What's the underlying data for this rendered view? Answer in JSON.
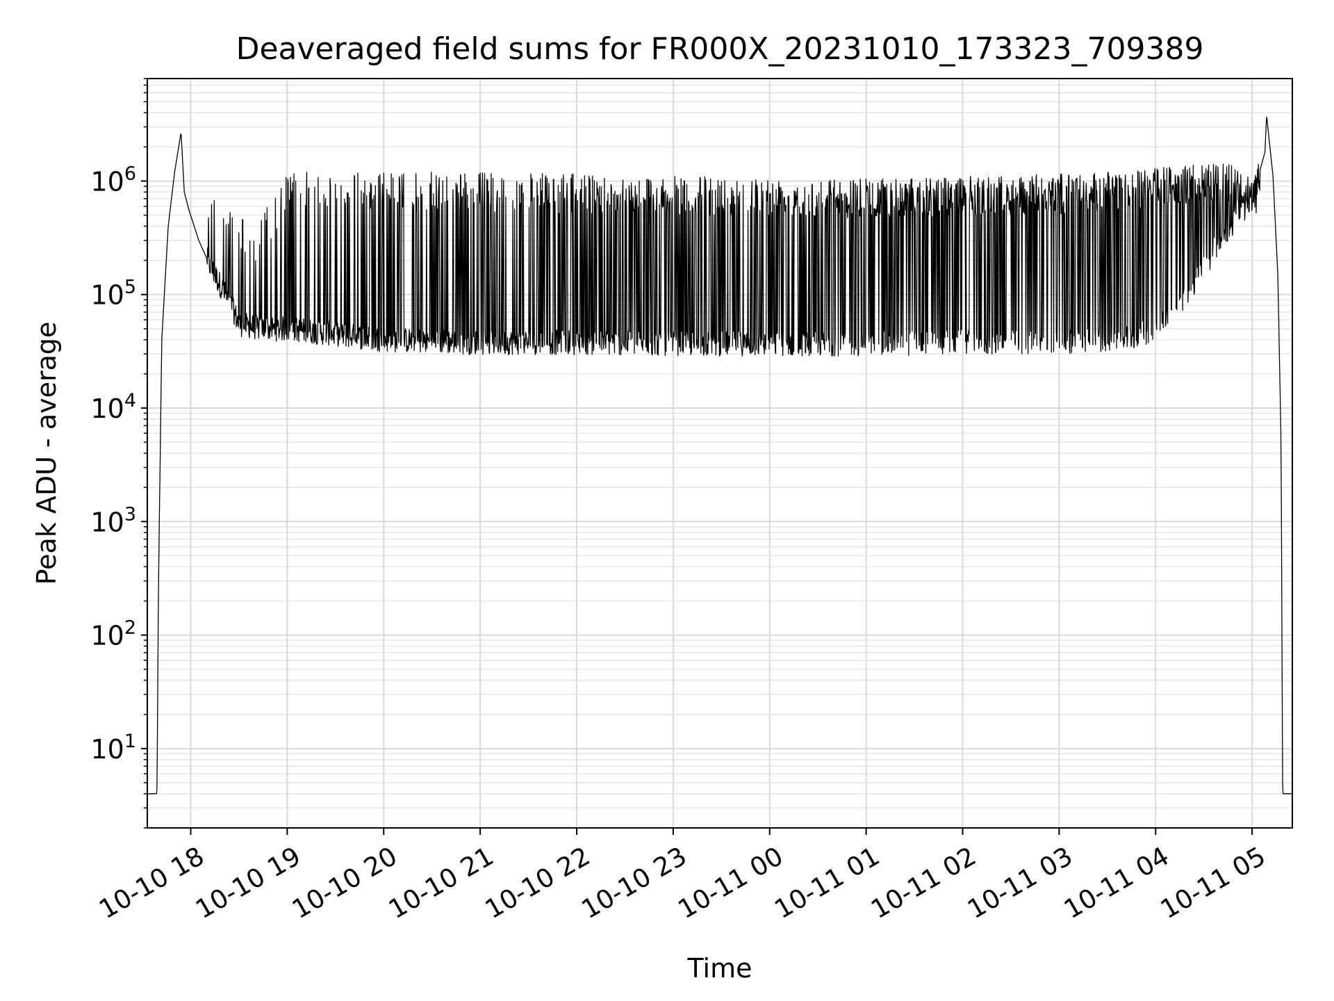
{
  "chart_data": {
    "type": "line",
    "title": "Deaveraged field sums for FR000X_20231010_173323_709389",
    "xlabel": "Time",
    "ylabel": "Peak ADU - average",
    "yscale": "log",
    "grid": true,
    "grid_minor": true,
    "xlim": [
      "2023-10-10 17:33",
      "2023-10-11 05:25"
    ],
    "ylim": [
      2,
      8000000
    ],
    "x_ticks": [
      {
        "label": "10-10 18",
        "time": "2023-10-10 18:00"
      },
      {
        "label": "10-10 19",
        "time": "2023-10-10 19:00"
      },
      {
        "label": "10-10 20",
        "time": "2023-10-10 20:00"
      },
      {
        "label": "10-10 21",
        "time": "2023-10-10 21:00"
      },
      {
        "label": "10-10 22",
        "time": "2023-10-10 22:00"
      },
      {
        "label": "10-10 23",
        "time": "2023-10-10 23:00"
      },
      {
        "label": "10-11 00",
        "time": "2023-10-11 00:00"
      },
      {
        "label": "10-11 01",
        "time": "2023-10-11 01:00"
      },
      {
        "label": "10-11 02",
        "time": "2023-10-11 02:00"
      },
      {
        "label": "10-11 03",
        "time": "2023-10-11 03:00"
      },
      {
        "label": "10-11 04",
        "time": "2023-10-11 04:00"
      },
      {
        "label": "10-11 05",
        "time": "2023-10-11 05:00"
      }
    ],
    "y_ticks": [
      {
        "base": "10",
        "exp": "1",
        "value": 10
      },
      {
        "base": "10",
        "exp": "2",
        "value": 100
      },
      {
        "base": "10",
        "exp": "3",
        "value": 1000
      },
      {
        "base": "10",
        "exp": "4",
        "value": 10000
      },
      {
        "base": "10",
        "exp": "5",
        "value": 100000
      },
      {
        "base": "10",
        "exp": "6",
        "value": 1000000
      }
    ],
    "series": [
      {
        "color": "#000000",
        "points": [
          [
            "2023-10-10 17:33",
            4
          ],
          [
            "2023-10-10 17:39",
            4
          ],
          [
            "2023-10-10 17:40",
            300
          ],
          [
            "2023-10-10 17:42",
            40000
          ],
          [
            "2023-10-10 17:46",
            400000
          ],
          [
            "2023-10-10 17:50",
            1200000
          ],
          [
            "2023-10-10 17:54",
            2700000
          ],
          [
            "2023-10-10 17:56",
            800000
          ],
          [
            "2023-10-10 17:59",
            550000
          ],
          [
            "2023-10-10 18:05",
            300000
          ],
          [
            "2023-10-10 18:12",
            180000
          ],
          [
            "2023-10-10 18:20",
            110000
          ],
          [
            "2023-10-10 18:27",
            70000
          ],
          [
            "2023-10-10 18:30",
            55000
          ],
          [
            "2023-10-10 18:45",
            50000
          ],
          [
            "2023-10-10 19:00",
            50000
          ],
          [
            "2023-10-10 19:30",
            45000
          ],
          [
            "2023-10-10 20:00",
            40000
          ],
          [
            "2023-10-10 21:00",
            38000
          ],
          [
            "2023-10-10 22:00",
            38000
          ],
          [
            "2023-10-10 23:00",
            37000
          ],
          [
            "2023-10-11 00:00",
            37000
          ],
          [
            "2023-10-11 01:00",
            37000
          ],
          [
            "2023-10-11 02:00",
            38000
          ],
          [
            "2023-10-11 03:00",
            38000
          ],
          [
            "2023-10-11 03:45",
            42000
          ],
          [
            "2023-10-11 04:00",
            50000
          ],
          [
            "2023-10-11 04:20",
            100000
          ],
          [
            "2023-10-11 04:40",
            300000
          ],
          [
            "2023-10-11 05:00",
            700000
          ],
          [
            "2023-10-11 05:08",
            1800000
          ],
          [
            "2023-10-11 05:09",
            3800000
          ],
          [
            "2023-10-11 05:13",
            1100000
          ],
          [
            "2023-10-11 05:16",
            150000
          ],
          [
            "2023-10-11 05:18",
            5000
          ],
          [
            "2023-10-11 05:19",
            4
          ],
          [
            "2023-10-11 05:25",
            4
          ]
        ],
        "spike_envelope": [
          [
            "2023-10-10 18:10",
            1000000
          ],
          [
            "2023-10-10 18:40",
            400000
          ],
          [
            "2023-10-10 19:00",
            1200000
          ],
          [
            "2023-10-10 20:00",
            1200000
          ],
          [
            "2023-10-10 21:00",
            1200000
          ],
          [
            "2023-10-10 22:00",
            1150000
          ],
          [
            "2023-10-10 23:00",
            1100000
          ],
          [
            "2023-10-11 00:00",
            1100000
          ],
          [
            "2023-10-11 01:00",
            1050000
          ],
          [
            "2023-10-11 02:00",
            1100000
          ],
          [
            "2023-10-11 03:00",
            1150000
          ],
          [
            "2023-10-11 04:00",
            1300000
          ],
          [
            "2023-10-11 04:40",
            1500000
          ],
          [
            "2023-10-11 05:05",
            1100000
          ]
        ]
      }
    ]
  }
}
